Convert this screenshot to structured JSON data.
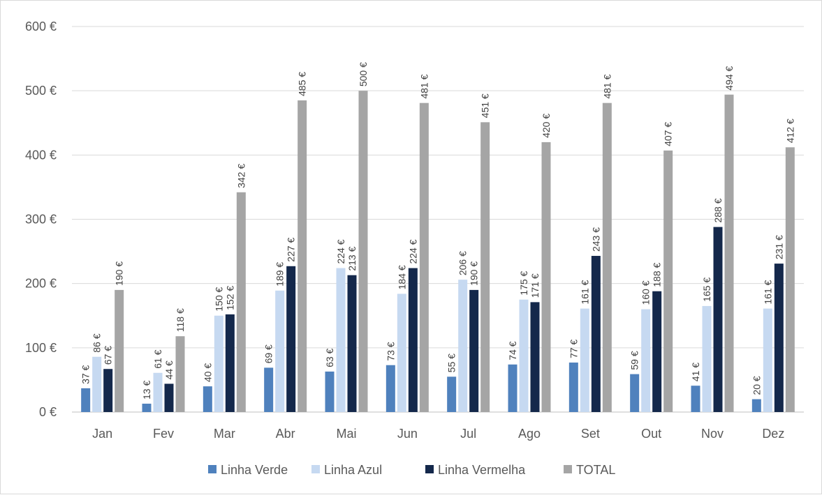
{
  "chart_data": {
    "type": "bar",
    "title": "",
    "xlabel": "",
    "ylabel": "",
    "ylim": [
      0,
      600
    ],
    "yticks": [
      0,
      100,
      200,
      300,
      400,
      500,
      600
    ],
    "ytick_labels": [
      "0 €",
      "100 €",
      "200 €",
      "300 €",
      "400 €",
      "500 €",
      "600 €"
    ],
    "grid": true,
    "legend": "bottom",
    "categories": [
      "Jan",
      "Fev",
      "Mar",
      "Abr",
      "Mai",
      "Jun",
      "Jul",
      "Ago",
      "Set",
      "Out",
      "Nov",
      "Dez"
    ],
    "series": [
      {
        "name": "Linha Verde",
        "color": "#4f81bd",
        "values": [
          37,
          13,
          40,
          69,
          63,
          73,
          55,
          74,
          77,
          59,
          41,
          20
        ],
        "labels": [
          "37 €",
          "13 €",
          "40 €",
          "69 €",
          "63 €",
          "73 €",
          "55 €",
          "74 €",
          "77 €",
          "59 €",
          "41 €",
          "20 €"
        ]
      },
      {
        "name": "Linha Azul",
        "color": "#c6d9f1",
        "values": [
          86,
          61,
          150,
          189,
          224,
          184,
          206,
          175,
          161,
          160,
          165,
          161
        ],
        "labels": [
          "86 €",
          "61 €",
          "150 €",
          "189 €",
          "224 €",
          "184 €",
          "206 €",
          "175 €",
          "161 €",
          "160 €",
          "165 €",
          "161 €"
        ]
      },
      {
        "name": "Linha Vermelha",
        "color": "#14284b",
        "values": [
          67,
          44,
          152,
          227,
          213,
          224,
          190,
          171,
          243,
          188,
          288,
          231
        ],
        "labels": [
          "67 €",
          "44 €",
          "152 €",
          "227 €",
          "213 €",
          "224 €",
          "190 €",
          "171 €",
          "243 €",
          "188 €",
          "288 €",
          "231 €"
        ]
      },
      {
        "name": "TOTAL",
        "color": "#a5a5a5",
        "values": [
          190,
          118,
          342,
          485,
          500,
          481,
          451,
          420,
          481,
          407,
          494,
          412
        ],
        "labels": [
          "190 €",
          "118 €",
          "342 €",
          "485 €",
          "500 €",
          "481 €",
          "451 €",
          "420 €",
          "481 €",
          "407 €",
          "494 €",
          "412 €"
        ]
      }
    ]
  }
}
